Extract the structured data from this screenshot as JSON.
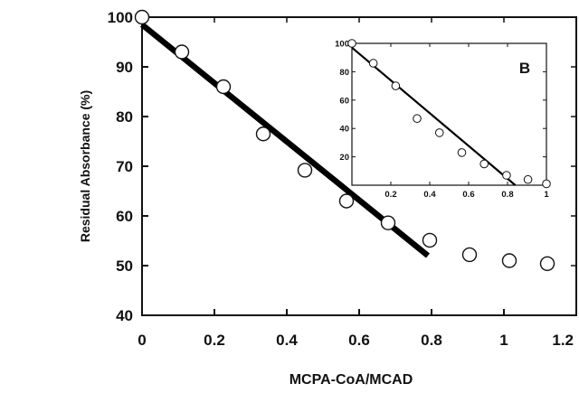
{
  "chart_data": [
    {
      "type": "scatter",
      "title": "",
      "xlabel": "MCPA-CoA/MCAD",
      "ylabel": "Residual Absorbance (%)",
      "xlim": [
        0,
        1.2
      ],
      "ylim": [
        40,
        100
      ],
      "xticks": [
        "0",
        "0.2",
        "0.4",
        "0.6",
        "0.8",
        "1",
        "1.2"
      ],
      "yticks": [
        "40",
        "50",
        "60",
        "70",
        "80",
        "90",
        "100"
      ],
      "grid": false,
      "series": [
        {
          "marker": "open-circle",
          "x": [
            0.0,
            0.11,
            0.225,
            0.335,
            0.45,
            0.565,
            0.68,
            0.795,
            0.905,
            1.015,
            1.12
          ],
          "y": [
            100,
            93,
            86,
            76.5,
            69.2,
            63,
            58.6,
            55.1,
            52.2,
            51,
            50.4
          ]
        }
      ],
      "fit_line": {
        "x": [
          0.0,
          0.79
        ],
        "y": [
          98.5,
          52
        ]
      }
    },
    {
      "type": "scatter",
      "panel_label": "B",
      "xlim": [
        0,
        1
      ],
      "ylim": [
        0,
        100
      ],
      "xticks": [
        "0.2",
        "0.4",
        "0.6",
        "0.8",
        "1"
      ],
      "yticks": [
        "20",
        "40",
        "60",
        "80",
        "100"
      ],
      "series": [
        {
          "marker": "open-circle",
          "x": [
            0.0,
            0.11,
            0.225,
            0.335,
            0.45,
            0.565,
            0.68,
            0.795,
            0.905,
            1.0
          ],
          "y": [
            100,
            86,
            70,
            47,
            37,
            23,
            15,
            7,
            4,
            1
          ]
        }
      ],
      "fit_line": {
        "x": [
          0.0,
          0.84
        ],
        "y": [
          97,
          0
        ]
      }
    }
  ]
}
